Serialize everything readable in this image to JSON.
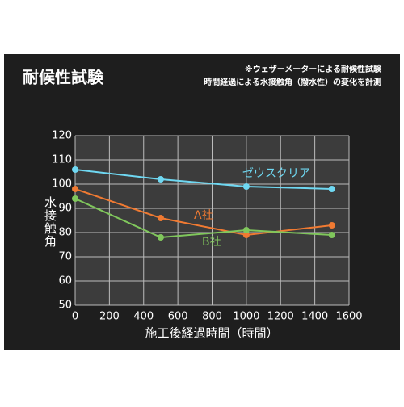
{
  "chart_data": {
    "type": "line",
    "title": "耐候性試験",
    "notes": [
      "※ウェザーメーターによる耐候性試験",
      "時間経過による水接触角（撥水性）の変化を計測"
    ],
    "x_label": "施工後経過時間（時間）",
    "y_label": "水接触角",
    "x": [
      0,
      500,
      1000,
      1500
    ],
    "series": [
      {
        "name": "ゼウスクリア",
        "color": "#6fd8f2",
        "values": [
          106,
          102,
          99,
          98
        ]
      },
      {
        "name": "A社",
        "color": "#f07a32",
        "values": [
          98,
          86,
          79,
          83
        ]
      },
      {
        "name": "B社",
        "color": "#80c75c",
        "values": [
          94,
          78,
          81,
          79
        ]
      }
    ],
    "xlim": [
      0,
      1600
    ],
    "xticks": [
      0,
      200,
      400,
      600,
      800,
      1000,
      1200,
      1400,
      1600
    ],
    "ylim": [
      50,
      120
    ],
    "yticks": [
      50,
      60,
      70,
      80,
      90,
      100,
      110,
      120
    ],
    "grid": true
  }
}
